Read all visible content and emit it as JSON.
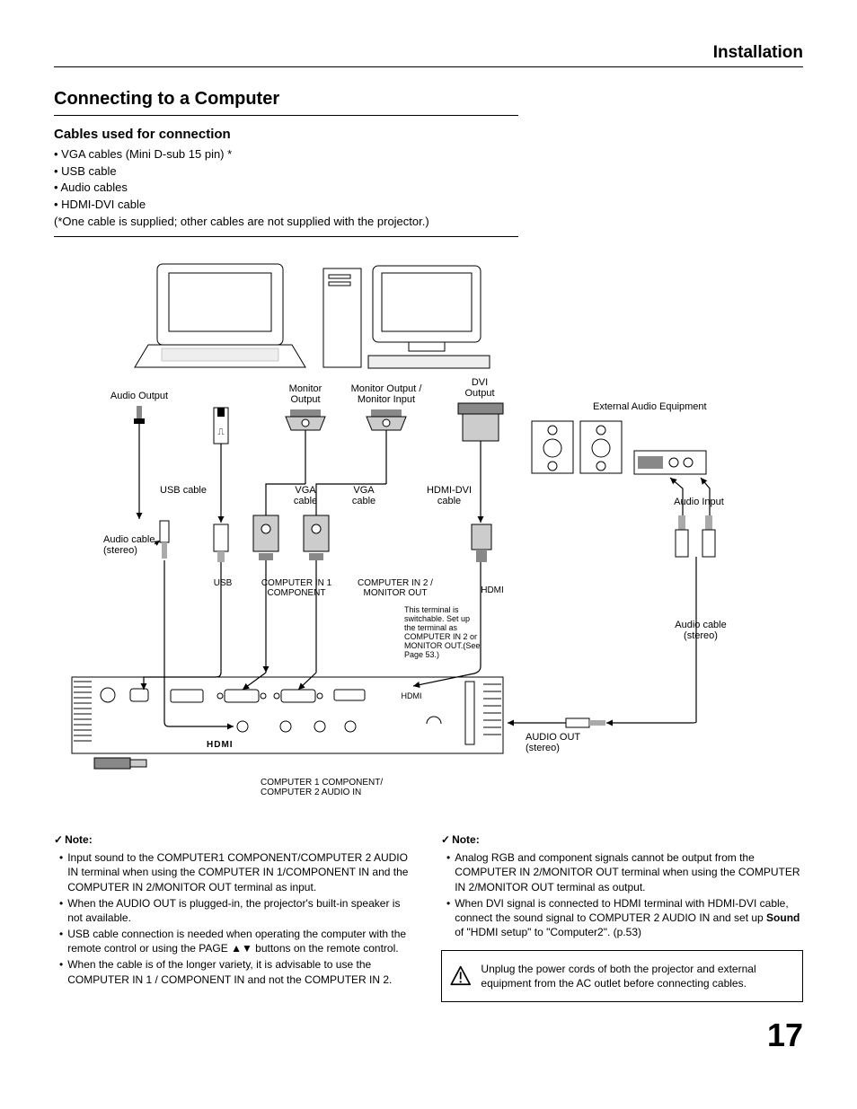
{
  "header": {
    "title": "Installation"
  },
  "section": {
    "title": "Connecting to a Computer"
  },
  "cables": {
    "heading": "Cables used for connection",
    "items": [
      "• VGA cables (Mini D-sub 15 pin) *",
      "• USB cable",
      "• Audio cables",
      "• HDMI-DVI cable"
    ],
    "footnote": "(*One cable is supplied; other cables are not supplied with the projector.)"
  },
  "diagram": {
    "labels": {
      "audio_output": "Audio Output",
      "monitor_output": "Monitor\nOutput",
      "monitor_output_input": "Monitor Output /\nMonitor Input",
      "dvi_output": "DVI\nOutput",
      "external_audio": "External Audio Equipment",
      "usb_cable": "USB cable",
      "vga_cable_1": "VGA\ncable",
      "vga_cable_2": "VGA\ncable",
      "hdmi_dvi_cable": "HDMI-DVI\ncable",
      "audio_input": "Audio Input",
      "audio_cable_left": "Audio cable\n(stereo)",
      "audio_cable_right": "Audio cable\n(stereo)",
      "usb": "USB",
      "computer_in_1": "COMPUTER IN 1\nCOMPONENT",
      "computer_in_2": "COMPUTER IN 2 /\nMONITOR OUT",
      "hdmi": "HDMI",
      "switchable": "This terminal is\nswitchable. Set up\nthe terminal as\nCOMPUTER IN 2 or\nMONITOR OUT.(See\nPage 53.)",
      "audio_out": "AUDIO OUT\n(stereo)",
      "computer_audio_in": "COMPUTER 1 COMPONENT/\nCOMPUTER 2 AUDIO IN",
      "hdmi_logo": "HDMI"
    },
    "colors": {
      "line": "#000000",
      "arrow": "#000000",
      "device_stroke": "#000000",
      "device_fill": "#ffffff",
      "panel_fill": "#f0f0f0",
      "text": "#000000"
    },
    "font": {
      "label_size": 11,
      "small_size": 9
    }
  },
  "notes_left": {
    "heading": "Note:",
    "items": [
      "Input sound to the COMPUTER1 COMPONENT/COMPUTER 2  AUDIO IN terminal when using the COMPUTER IN 1/COMPONENT IN and the COMPUTER IN 2/MONITOR OUT terminal as input.",
      "When the AUDIO OUT is plugged-in, the projector's built-in speaker is not available.",
      "USB cable connection is needed when operating the computer with the remote control or using the PAGE ▲▼ buttons on the remote control.",
      "When the cable is of the longer variety, it is advisable to use the COMPUTER IN 1 / COMPONENT IN and not the COMPUTER IN 2."
    ]
  },
  "notes_right": {
    "heading": "Note:",
    "items": [
      "Analog RGB and component signals cannot be output from the COMPUTER IN 2/MONITOR OUT terminal when using the COMPUTER IN 2/MONITOR OUT terminal as output."
    ],
    "item_html": "When DVI signal is connected to HDMI terminal with HDMI-DVI cable, connect the sound signal to COMPUTER 2 AUDIO IN and set up <b>Sound</b> of \"HDMI setup\" to \"Computer2\". (p.53)"
  },
  "warning": {
    "text": "Unplug the power cords of both the projector and external equipment from the AC outlet before connecting cables."
  },
  "page_number": "17",
  "svg_style": {
    "stroke": "#000000",
    "stroke_width": 1,
    "fill_none": "none",
    "fill_white": "#ffffff",
    "fill_grey": "#e8e8e8",
    "fill_dgrey": "#b8b8b8",
    "text_font": "Arial, Helvetica, sans-serif"
  }
}
